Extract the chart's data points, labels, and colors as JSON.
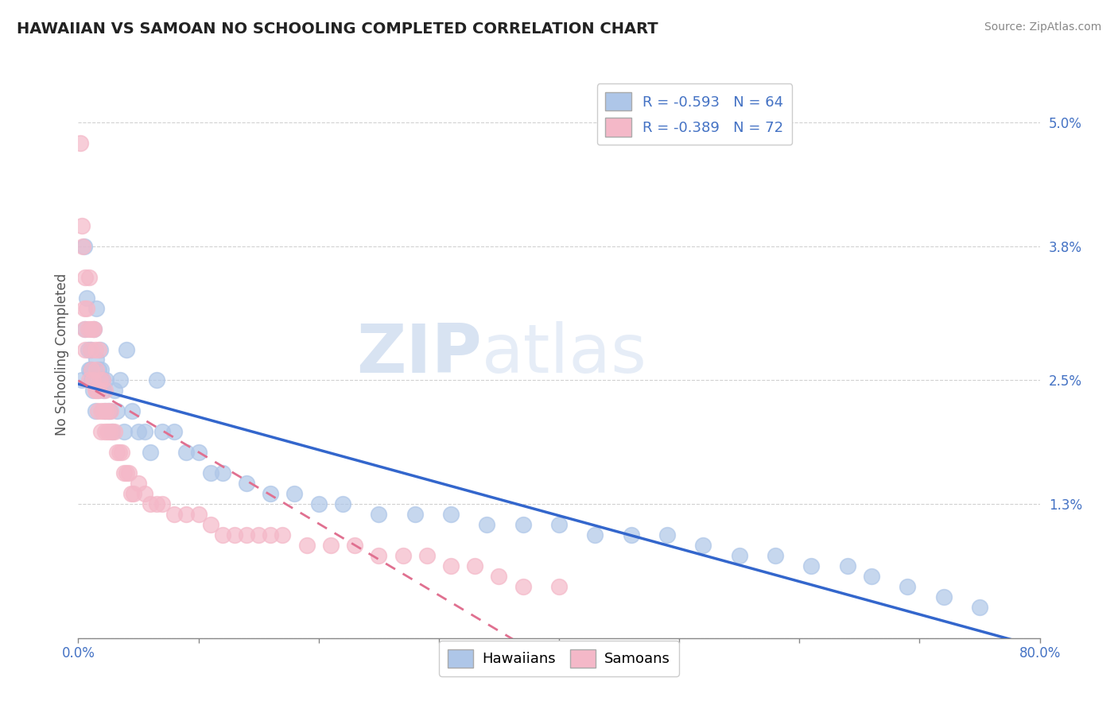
{
  "title": "HAWAIIAN VS SAMOAN NO SCHOOLING COMPLETED CORRELATION CHART",
  "source": "Source: ZipAtlas.com",
  "ylabel": "No Schooling Completed",
  "xlim": [
    0.0,
    0.8
  ],
  "ylim": [
    0.0,
    0.055
  ],
  "yticks": [
    0.0,
    0.013,
    0.025,
    0.038,
    0.05
  ],
  "ytick_labels": [
    "",
    "1.3%",
    "2.5%",
    "3.8%",
    "5.0%"
  ],
  "xtick_left_label": "0.0%",
  "xtick_right_label": "80.0%",
  "hawaiian_color": "#aec6e8",
  "samoan_color": "#f4b8c8",
  "hawaiian_line_color": "#3366cc",
  "samoan_line_color": "#e07090",
  "R_hawaiian": -0.593,
  "N_hawaiian": 64,
  "R_samoan": -0.389,
  "N_samoan": 72,
  "hawaiian_x": [
    0.003,
    0.005,
    0.006,
    0.007,
    0.008,
    0.009,
    0.01,
    0.01,
    0.011,
    0.012,
    0.013,
    0.014,
    0.015,
    0.015,
    0.016,
    0.017,
    0.018,
    0.019,
    0.02,
    0.021,
    0.022,
    0.023,
    0.025,
    0.026,
    0.028,
    0.03,
    0.032,
    0.035,
    0.038,
    0.04,
    0.045,
    0.05,
    0.055,
    0.06,
    0.065,
    0.07,
    0.08,
    0.09,
    0.1,
    0.11,
    0.12,
    0.14,
    0.16,
    0.18,
    0.2,
    0.22,
    0.25,
    0.28,
    0.31,
    0.34,
    0.37,
    0.4,
    0.43,
    0.46,
    0.49,
    0.52,
    0.55,
    0.58,
    0.61,
    0.64,
    0.66,
    0.69,
    0.72,
    0.75
  ],
  "hawaiian_y": [
    0.025,
    0.038,
    0.03,
    0.033,
    0.028,
    0.026,
    0.026,
    0.028,
    0.025,
    0.024,
    0.03,
    0.022,
    0.027,
    0.032,
    0.024,
    0.026,
    0.028,
    0.026,
    0.025,
    0.024,
    0.022,
    0.025,
    0.022,
    0.022,
    0.02,
    0.024,
    0.022,
    0.025,
    0.02,
    0.028,
    0.022,
    0.02,
    0.02,
    0.018,
    0.025,
    0.02,
    0.02,
    0.018,
    0.018,
    0.016,
    0.016,
    0.015,
    0.014,
    0.014,
    0.013,
    0.013,
    0.012,
    0.012,
    0.012,
    0.011,
    0.011,
    0.011,
    0.01,
    0.01,
    0.01,
    0.009,
    0.008,
    0.008,
    0.007,
    0.007,
    0.006,
    0.005,
    0.004,
    0.003
  ],
  "samoan_x": [
    0.002,
    0.003,
    0.004,
    0.005,
    0.005,
    0.006,
    0.006,
    0.007,
    0.008,
    0.009,
    0.009,
    0.01,
    0.01,
    0.011,
    0.012,
    0.012,
    0.013,
    0.014,
    0.014,
    0.015,
    0.015,
    0.016,
    0.017,
    0.017,
    0.018,
    0.019,
    0.019,
    0.02,
    0.021,
    0.022,
    0.022,
    0.023,
    0.024,
    0.025,
    0.026,
    0.027,
    0.028,
    0.03,
    0.032,
    0.034,
    0.036,
    0.038,
    0.04,
    0.042,
    0.044,
    0.046,
    0.05,
    0.055,
    0.06,
    0.065,
    0.07,
    0.08,
    0.09,
    0.1,
    0.11,
    0.12,
    0.13,
    0.14,
    0.15,
    0.16,
    0.17,
    0.19,
    0.21,
    0.23,
    0.25,
    0.27,
    0.29,
    0.31,
    0.33,
    0.35,
    0.37,
    0.4
  ],
  "samoan_y": [
    0.048,
    0.04,
    0.038,
    0.03,
    0.032,
    0.035,
    0.028,
    0.032,
    0.03,
    0.025,
    0.035,
    0.028,
    0.03,
    0.026,
    0.03,
    0.025,
    0.03,
    0.028,
    0.024,
    0.026,
    0.024,
    0.022,
    0.024,
    0.028,
    0.025,
    0.022,
    0.02,
    0.025,
    0.022,
    0.02,
    0.024,
    0.022,
    0.02,
    0.022,
    0.02,
    0.022,
    0.02,
    0.02,
    0.018,
    0.018,
    0.018,
    0.016,
    0.016,
    0.016,
    0.014,
    0.014,
    0.015,
    0.014,
    0.013,
    0.013,
    0.013,
    0.012,
    0.012,
    0.012,
    0.011,
    0.01,
    0.01,
    0.01,
    0.01,
    0.01,
    0.01,
    0.009,
    0.009,
    0.009,
    0.008,
    0.008,
    0.008,
    0.007,
    0.007,
    0.006,
    0.005,
    0.005
  ],
  "watermark_zip": "ZIP",
  "watermark_atlas": "atlas",
  "background_color": "#ffffff",
  "grid_color": "#cccccc",
  "title_color": "#222222",
  "axis_label_color": "#555555",
  "tick_color": "#4472c4",
  "source_color": "#888888"
}
